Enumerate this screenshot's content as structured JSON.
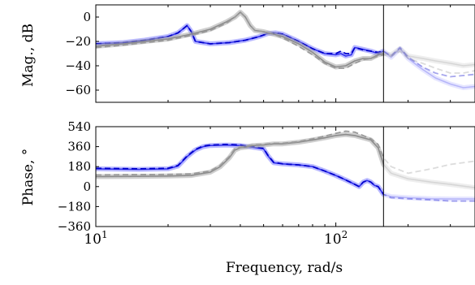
{
  "chart_data": [
    {
      "type": "line",
      "ylabel": "Mag., dB",
      "xscale": "log",
      "xlim": [
        10,
        380
      ],
      "ylim": [
        -70,
        10
      ],
      "yticks": [
        0,
        -20,
        -40,
        -60
      ],
      "ytick_labels": [
        "0",
        "−20",
        "−40",
        "−60"
      ],
      "grid": false,
      "marker_x": 158,
      "series": [
        {
          "style": "solid",
          "color": "#8080ff",
          "faded_after_marker": true,
          "x": [
            10,
            13,
            16,
            20,
            22,
            23,
            24,
            25,
            26,
            30,
            36,
            42,
            48,
            52,
            56,
            60,
            70,
            80,
            90,
            100,
            105,
            110,
            116,
            120,
            130,
            140,
            150,
            158,
            170,
            185,
            200,
            230,
            260,
            300,
            340,
            380
          ],
          "y": [
            -22,
            -21,
            -19,
            -16,
            -13,
            -10,
            -7,
            -12,
            -20,
            -22,
            -21,
            -19,
            -16,
            -13.5,
            -13,
            -14,
            -20,
            -26,
            -30,
            -31,
            -30,
            -32,
            -31,
            -25,
            -26.5,
            -28,
            -30,
            -28,
            -33,
            -26,
            -34,
            -43,
            -50,
            -55,
            -58,
            -57
          ]
        },
        {
          "style": "dashed",
          "color": "#0000cc",
          "faded_after_marker": true,
          "x": [
            10,
            13,
            16,
            20,
            22,
            23,
            24,
            25,
            26,
            30,
            36,
            42,
            48,
            52,
            56,
            60,
            70,
            80,
            90,
            100,
            105,
            110,
            116,
            120,
            130,
            140,
            150,
            158,
            170,
            185,
            200,
            230,
            260,
            300,
            340,
            380
          ],
          "y": [
            -22,
            -21,
            -19,
            -16,
            -13,
            -10,
            -7,
            -12,
            -20,
            -22,
            -21,
            -19,
            -16,
            -13.5,
            -13,
            -14,
            -20,
            -26,
            -30,
            -30,
            -28,
            -30,
            -30,
            -25,
            -27,
            -28,
            -29,
            -28,
            -32,
            -25,
            -33,
            -41,
            -46,
            -49,
            -48,
            -47
          ]
        },
        {
          "style": "solid",
          "color": "#a8a8a8",
          "faded_after_marker": true,
          "x": [
            10,
            13,
            16,
            20,
            25,
            30,
            35,
            38,
            40,
            42,
            44,
            46,
            50,
            55,
            60,
            70,
            80,
            90,
            100,
            110,
            120,
            130,
            140,
            150,
            158,
            170,
            185,
            200,
            230,
            260,
            300,
            340,
            380
          ],
          "y": [
            -24,
            -22,
            -20,
            -18,
            -14,
            -10,
            -4,
            0,
            4,
            0,
            -7,
            -11,
            -12,
            -14,
            -16,
            -22,
            -29,
            -37,
            -41,
            -40,
            -36,
            -34,
            -34,
            -31,
            -30,
            -31,
            -26,
            -32,
            -34,
            -36,
            -38,
            -40,
            -39
          ]
        },
        {
          "style": "dashed",
          "color": "#9a9a9a",
          "faded_after_marker": true,
          "x": [
            10,
            13,
            16,
            20,
            25,
            30,
            35,
            38,
            40,
            42,
            44,
            46,
            50,
            55,
            60,
            70,
            80,
            90,
            100,
            110,
            120,
            130,
            140,
            150,
            158,
            170,
            185,
            200,
            230,
            260,
            300,
            340,
            380
          ],
          "y": [
            -25,
            -23,
            -21,
            -19,
            -15,
            -11,
            -5,
            0,
            4,
            0,
            -7,
            -11,
            -12,
            -14,
            -17,
            -24,
            -31,
            -38,
            -42,
            -42,
            -38,
            -35,
            -34,
            -32,
            -31,
            -32,
            -28,
            -34,
            -38,
            -42,
            -46,
            -46,
            -44
          ]
        }
      ]
    },
    {
      "type": "line",
      "ylabel": "Phase, °",
      "xlabel": "Frequency, rad/s",
      "xscale": "log",
      "xlim": [
        10,
        380
      ],
      "ylim": [
        -360,
        540
      ],
      "yticks": [
        540,
        360,
        180,
        0,
        -180,
        -360
      ],
      "ytick_labels": [
        "540",
        "360",
        "180",
        "0",
        "−180",
        "−360"
      ],
      "xticks": [
        10,
        100
      ],
      "xtick_labels_base": [
        "10",
        "10"
      ],
      "xtick_labels_exp": [
        "1",
        "2"
      ],
      "grid": false,
      "marker_x": 158,
      "series": [
        {
          "style": "solid",
          "color": "#8080ff",
          "faded_after_marker": true,
          "x": [
            10,
            15,
            20,
            22,
            24,
            26,
            28,
            30,
            35,
            40,
            45,
            50,
            52,
            55,
            60,
            70,
            80,
            90,
            100,
            110,
            120,
            125,
            130,
            135,
            140,
            145,
            150,
            158,
            170,
            200,
            250,
            300,
            380
          ],
          "y": [
            160,
            155,
            160,
            185,
            270,
            330,
            360,
            370,
            375,
            370,
            355,
            340,
            280,
            215,
            205,
            195,
            180,
            140,
            100,
            60,
            20,
            0,
            40,
            55,
            40,
            10,
            0,
            -70,
            -90,
            -100,
            -110,
            -112,
            -112
          ]
        },
        {
          "style": "dashed",
          "color": "#0000cc",
          "faded_after_marker": true,
          "x": [
            10,
            15,
            20,
            22,
            24,
            26,
            28,
            30,
            35,
            40,
            45,
            50,
            52,
            55,
            60,
            70,
            80,
            90,
            100,
            110,
            120,
            125,
            130,
            135,
            140,
            145,
            150,
            158,
            170,
            200,
            250,
            300,
            380
          ],
          "y": [
            165,
            160,
            165,
            190,
            275,
            335,
            365,
            375,
            380,
            375,
            360,
            345,
            285,
            220,
            205,
            195,
            180,
            140,
            100,
            60,
            20,
            0,
            40,
            55,
            40,
            10,
            0,
            -70,
            -100,
            -110,
            -120,
            -130,
            -130
          ]
        },
        {
          "style": "solid",
          "color": "#a8a8a8",
          "faded_after_marker": true,
          "x": [
            10,
            15,
            20,
            25,
            30,
            33,
            36,
            38,
            40,
            42,
            45,
            50,
            55,
            60,
            70,
            80,
            90,
            100,
            110,
            120,
            130,
            140,
            150,
            158,
            170,
            200,
            250,
            300,
            380
          ],
          "y": [
            90,
            92,
            95,
            100,
            130,
            180,
            260,
            330,
            350,
            355,
            370,
            375,
            385,
            385,
            400,
            420,
            440,
            460,
            470,
            460,
            440,
            420,
            350,
            200,
            120,
            70,
            40,
            20,
            -10
          ]
        },
        {
          "style": "dashed",
          "color": "#9a9a9a",
          "faded_after_marker": true,
          "x": [
            10,
            15,
            20,
            25,
            30,
            33,
            36,
            38,
            40,
            42,
            45,
            50,
            55,
            60,
            70,
            80,
            90,
            100,
            110,
            120,
            130,
            140,
            150,
            158,
            170,
            200,
            250,
            300,
            380
          ],
          "y": [
            105,
            108,
            110,
            115,
            140,
            190,
            270,
            340,
            355,
            360,
            375,
            380,
            390,
            390,
            405,
            430,
            455,
            480,
            500,
            490,
            460,
            430,
            380,
            260,
            180,
            120,
            160,
            200,
            230
          ]
        }
      ]
    }
  ]
}
